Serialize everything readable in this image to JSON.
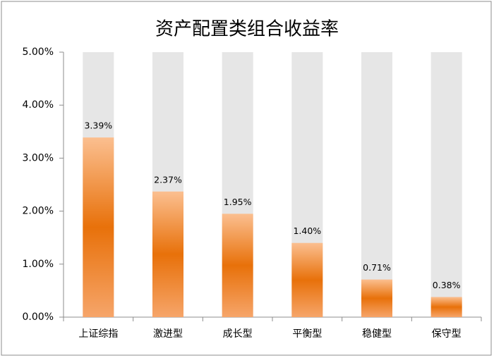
{
  "chart_data": {
    "type": "bar",
    "title": "资产配置类组合收益率",
    "categories": [
      "上证综指",
      "激进型",
      "成长型",
      "平衡型",
      "稳健型",
      "保守型"
    ],
    "values": [
      3.39,
      2.37,
      1.95,
      1.4,
      0.71,
      0.38
    ],
    "value_labels": [
      "3.39%",
      "2.37%",
      "1.95%",
      "1.40%",
      "0.71%",
      "0.38%"
    ],
    "color": "#e8710a",
    "ylim": [
      0,
      5
    ],
    "yticks": [
      {
        "value": 0,
        "label": "0.00%"
      },
      {
        "value": 1,
        "label": "1.00%"
      },
      {
        "value": 2,
        "label": "2.00%"
      },
      {
        "value": 3,
        "label": "3.00%"
      },
      {
        "value": 4,
        "label": "4.00%"
      },
      {
        "value": 5,
        "label": "5.00%"
      }
    ],
    "grid": false
  }
}
